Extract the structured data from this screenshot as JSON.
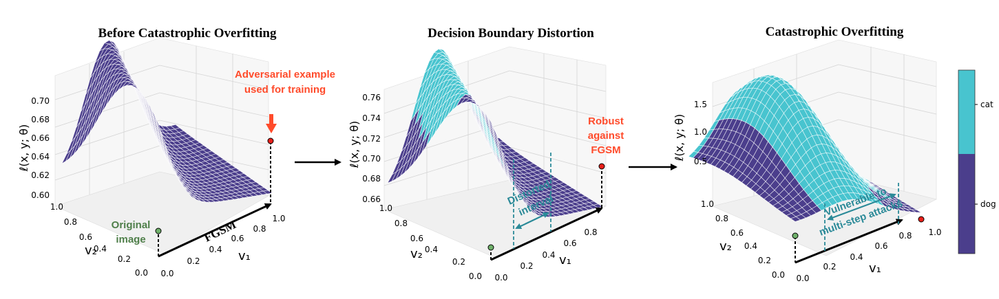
{
  "colors": {
    "dog": "#4b3e8c",
    "cat": "#48c4cf",
    "point_red": "#e8201a",
    "point_green": "#6fb06a",
    "arrow_red": "#ff4b2b"
  },
  "chart_data": [
    {
      "type": "surface",
      "title": "Before Catastrophic Overfitting",
      "zlabel": "ℓ(x, y; θ)",
      "xlabel": "v₁",
      "ylabel": "v₂",
      "x_ticks": [
        "0.0",
        "0.2",
        "0.4",
        "0.6",
        "0.8",
        "1.0"
      ],
      "y_ticks": [
        "0.0",
        "0.2",
        "0.4",
        "0.6",
        "0.8",
        "1.0"
      ],
      "z_ticks": [
        "0.60",
        "0.62",
        "0.64",
        "0.66",
        "0.68",
        "0.70"
      ],
      "zlim": [
        0.6,
        0.705
      ],
      "annotations": {
        "adversarial": [
          "Adversarial example",
          "used for training"
        ],
        "original": [
          "Original",
          "image"
        ],
        "fgsm": "FGSM"
      }
    },
    {
      "type": "surface",
      "title": "Decision Boundary Distortion",
      "zlabel": "ℓ(x, y; θ)",
      "xlabel": "v₁",
      "ylabel": "v₂",
      "x_ticks": [
        "0.0",
        "0.2",
        "0.4",
        "0.6",
        "0.8"
      ],
      "y_ticks": [
        "0.0",
        "0.2",
        "0.4",
        "0.6",
        "0.8",
        "1.0"
      ],
      "z_ticks": [
        "0.66",
        "0.68",
        "0.70",
        "0.72",
        "0.74",
        "0.76"
      ],
      "zlim": [
        0.66,
        0.765
      ],
      "annotations": {
        "robust": [
          "Robust",
          "against",
          "FGSM"
        ],
        "distorted": [
          "Distorted",
          "interval"
        ]
      }
    },
    {
      "type": "surface",
      "title": "Catastrophic Overfitting",
      "zlabel": "ℓ(x, y; θ)",
      "xlabel": "v₁",
      "ylabel": "v₂",
      "x_ticks": [
        "0.0",
        "0.2",
        "0.4",
        "0.6",
        "0.8",
        "1.0"
      ],
      "y_ticks": [
        "0.0",
        "0.2",
        "0.4",
        "0.6",
        "0.8",
        "1.0"
      ],
      "z_ticks": [
        "0.5",
        "1.0",
        "1.5"
      ],
      "zlim": [
        0.2,
        1.7
      ],
      "annotations": {
        "vulnerable": [
          "Vulnerable to",
          "multi-step attacks"
        ]
      }
    }
  ],
  "colorbar": {
    "labels": [
      "cat",
      "dog"
    ]
  }
}
